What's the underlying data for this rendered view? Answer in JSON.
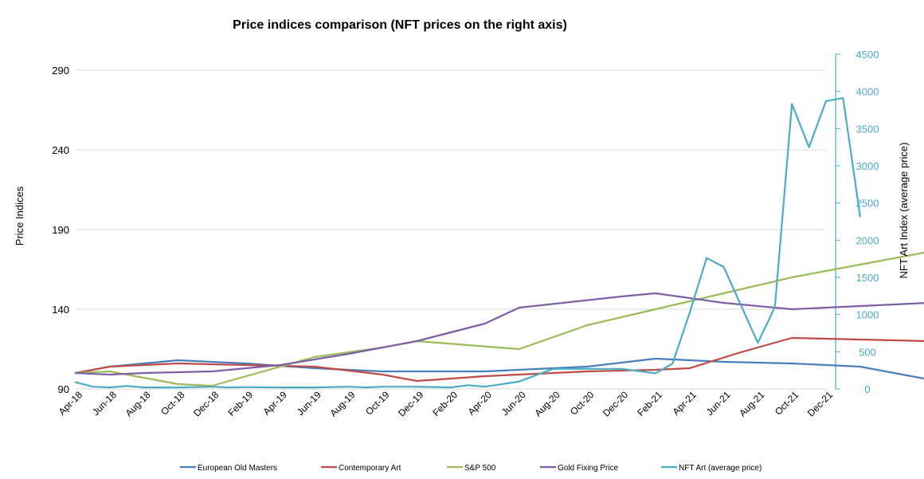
{
  "chart_data": {
    "type": "line",
    "title": "Price indices comparison (NFT prices on the right axis)",
    "ylabel": "Price Indices",
    "y2label": "NFT Art Index (average price)",
    "xlabel": "",
    "ylim": [
      90,
      300
    ],
    "y_ticks": [
      90,
      140,
      190,
      240,
      290
    ],
    "y2lim": [
      0,
      4500
    ],
    "y2_ticks": [
      0,
      500,
      1000,
      1500,
      2000,
      2500,
      3000,
      3500,
      4000,
      4500
    ],
    "grid": true,
    "legend_position": "bottom",
    "x_tick_labels": [
      "Apr-18",
      "Jun-18",
      "Aug-18",
      "Oct-18",
      "Dec-18",
      "Feb-19",
      "Apr-19",
      "Jun-19",
      "Aug-19",
      "Oct-19",
      "Dec-19",
      "Feb-20",
      "Apr-20",
      "Jun-20",
      "Aug-20",
      "Oct-20",
      "Dec-20",
      "Feb-21",
      "Apr-21",
      "Jun-21",
      "Aug-21",
      "Oct-21",
      "Dec-21"
    ],
    "series": [
      {
        "name": "European Old Masters",
        "axis": "left",
        "color": "#4a7ebb",
        "points": [
          [
            0,
            100
          ],
          [
            2,
            104
          ],
          [
            6,
            108
          ],
          [
            10,
            106
          ],
          [
            14,
            103
          ],
          [
            18,
            101
          ],
          [
            24,
            101
          ],
          [
            30,
            104
          ],
          [
            34,
            109
          ],
          [
            38,
            107
          ],
          [
            42,
            106
          ],
          [
            46,
            104
          ],
          [
            50,
            96
          ]
        ]
      },
      {
        "name": "Contemporary Art",
        "axis": "left",
        "color": "#be4b48",
        "points": [
          [
            0,
            100
          ],
          [
            2,
            104
          ],
          [
            6,
            106
          ],
          [
            10,
            105
          ],
          [
            14,
            104
          ],
          [
            18,
            99
          ],
          [
            20,
            95
          ],
          [
            24,
            98
          ],
          [
            30,
            101
          ],
          [
            34,
            102
          ],
          [
            36,
            103
          ],
          [
            39,
            113
          ],
          [
            42,
            122
          ],
          [
            46,
            121
          ],
          [
            50,
            120
          ]
        ]
      },
      {
        "name": "S&P 500",
        "axis": "left",
        "color": "#9bbb59",
        "points": [
          [
            0,
            100
          ],
          [
            2,
            101
          ],
          [
            4,
            97
          ],
          [
            6,
            93
          ],
          [
            8,
            92
          ],
          [
            10,
            98
          ],
          [
            14,
            110
          ],
          [
            18,
            116
          ],
          [
            20,
            120
          ],
          [
            26,
            115
          ],
          [
            30,
            130
          ],
          [
            34,
            140
          ],
          [
            38,
            150
          ],
          [
            42,
            160
          ],
          [
            46,
            168
          ],
          [
            50,
            176
          ]
        ]
      },
      {
        "name": "Gold Fixing Price",
        "axis": "left",
        "color": "#7e5ea6",
        "points": [
          [
            0,
            100
          ],
          [
            2,
            99
          ],
          [
            4,
            100
          ],
          [
            8,
            101
          ],
          [
            12,
            105
          ],
          [
            16,
            112
          ],
          [
            20,
            120
          ],
          [
            24,
            131
          ],
          [
            26,
            141
          ],
          [
            32,
            148
          ],
          [
            34,
            150
          ],
          [
            38,
            144
          ],
          [
            42,
            140
          ],
          [
            46,
            142
          ],
          [
            50,
            144
          ]
        ]
      },
      {
        "name": "NFT Art (average price)",
        "axis": "right",
        "color": "#4bacc6",
        "points": [
          [
            0,
            90
          ],
          [
            1,
            30
          ],
          [
            2,
            20
          ],
          [
            3,
            40
          ],
          [
            4,
            20
          ],
          [
            6,
            20
          ],
          [
            8,
            30
          ],
          [
            9,
            20
          ],
          [
            10,
            25
          ],
          [
            12,
            20
          ],
          [
            14,
            20
          ],
          [
            16,
            30
          ],
          [
            17,
            20
          ],
          [
            18,
            30
          ],
          [
            20,
            30
          ],
          [
            22,
            20
          ],
          [
            23,
            50
          ],
          [
            24,
            30
          ],
          [
            26,
            100
          ],
          [
            28,
            270
          ],
          [
            30,
            270
          ],
          [
            32,
            270
          ],
          [
            34,
            210
          ],
          [
            35,
            340
          ],
          [
            36,
            1020
          ],
          [
            37,
            1760
          ],
          [
            38,
            1640
          ],
          [
            40,
            620
          ],
          [
            41,
            1100
          ],
          [
            42,
            3830
          ],
          [
            43,
            3250
          ],
          [
            44,
            3870
          ],
          [
            45,
            3910
          ],
          [
            46,
            2320
          ]
        ]
      }
    ]
  }
}
